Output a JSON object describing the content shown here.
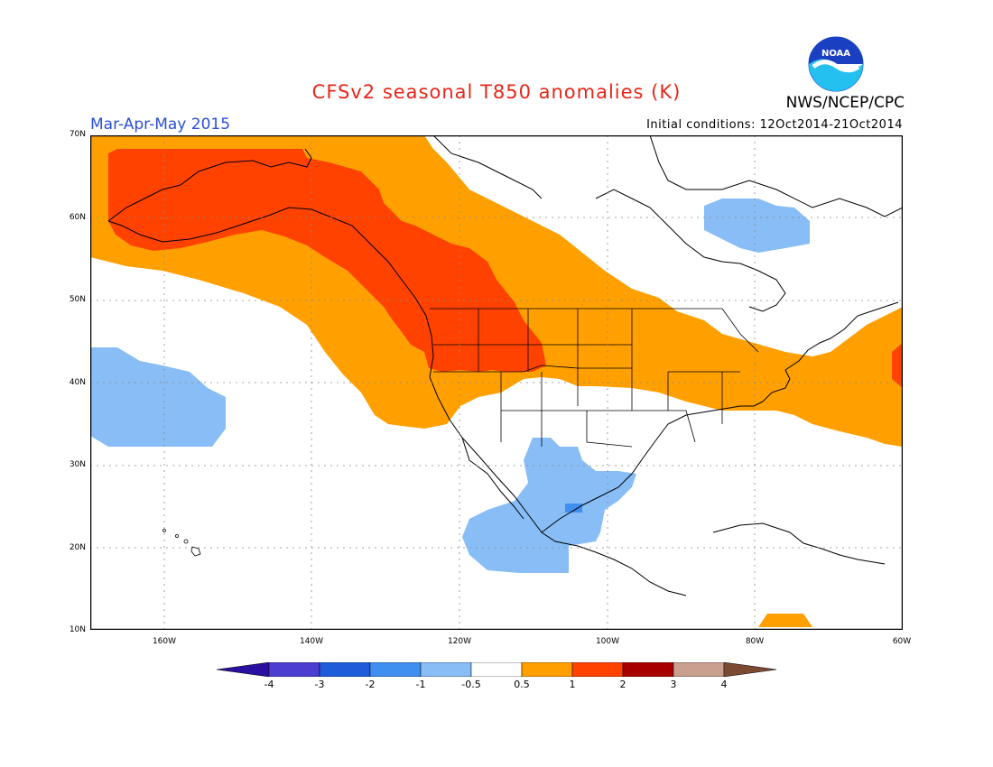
{
  "header": {
    "title": "CFSv2 seasonal T850 anomalies (K)",
    "agency": "NWS/NCEP/CPC",
    "logo_text": "NOAA",
    "season": "Mar-Apr-May 2015",
    "initial_conditions": "Initial conditions: 12Oct2014-21Oct2014"
  },
  "map": {
    "lat_labels": [
      "70N",
      "60N",
      "50N",
      "40N",
      "30N",
      "20N",
      "10N"
    ],
    "lon_labels": [
      "160W",
      "140W",
      "120W",
      "100W",
      "80W",
      "60W"
    ]
  },
  "colorbar": {
    "labels": [
      "-4",
      "-3",
      "-2",
      "-1",
      "-0.5",
      "0.5",
      "1",
      "2",
      "3",
      "4"
    ],
    "colors": [
      "#2b0fa0",
      "#4b3ed0",
      "#1f5cd9",
      "#3f8ff0",
      "#88bdf6",
      "#ffffff",
      "#ffa000",
      "#ff4200",
      "#a80000",
      "#c9a08f",
      "#7a4a33"
    ]
  },
  "colors": {
    "title": "#e8261a",
    "season": "#2a4fd8",
    "warm_0_5_1": "#ffa000",
    "warm_1_2": "#ff4200",
    "cool_m0_5_m1": "#88bdf6",
    "cool_m1_m2": "#3f8ff0"
  }
}
